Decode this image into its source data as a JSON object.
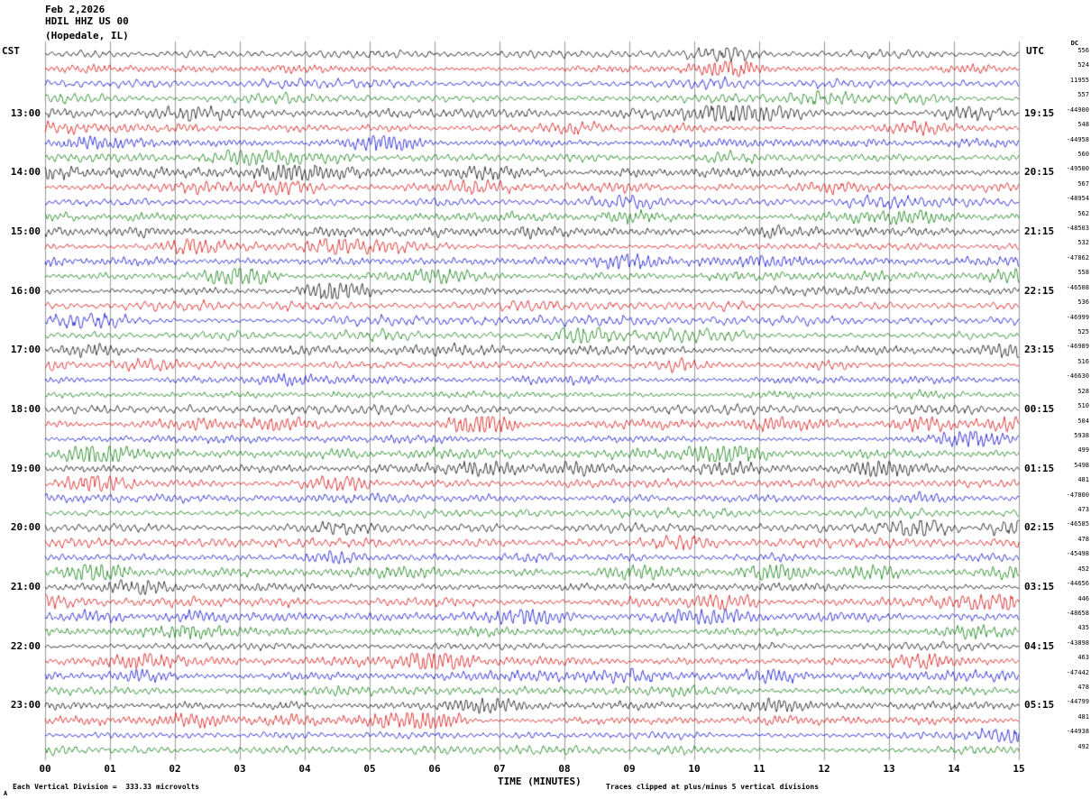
{
  "header": {
    "date": "Feb 2,2026",
    "station": "HDIL HHZ US 00",
    "location": "(Hopedale, IL)"
  },
  "corner_labels": {
    "left": "CST",
    "right": "UTC",
    "dc": "DC"
  },
  "x_axis": {
    "title": "TIME (MINUTES)",
    "ticks": [
      "00",
      "01",
      "02",
      "03",
      "04",
      "05",
      "06",
      "07",
      "08",
      "09",
      "10",
      "11",
      "12",
      "13",
      "14",
      "15"
    ]
  },
  "footer": {
    "scale_note": "Each Vertical Division =  333.33 microvolts",
    "clip_note": "Traces clipped at plus/minus 5 vertical divisions",
    "corner_mark": "A"
  },
  "chart_data": {
    "type": "line",
    "description": "Helicorder seismogram: 48 traces, 15 minutes of continuous waveform per row, colors cycling black/red/blue/green; right column lists per-trace DC offset values.",
    "minutes_per_line": 15,
    "x_range": [
      0,
      15
    ],
    "microvolts_per_division": 333.33,
    "clip_divisions": 5,
    "grid": "vertical lines each minute",
    "legend_position": "none",
    "trace_colors": {
      "black": "#000000",
      "red": "#d40000",
      "blue": "#0000cc",
      "green": "#007700"
    },
    "color_cycle": [
      "black",
      "red",
      "blue",
      "green"
    ],
    "rows": [
      {
        "cst": "",
        "utc": "",
        "dc": 556
      },
      {
        "cst": "",
        "utc": "",
        "dc": 524
      },
      {
        "cst": "",
        "utc": "",
        "dc": 11955
      },
      {
        "cst": "",
        "utc": "",
        "dc": 557
      },
      {
        "cst": "13:00",
        "utc": "19:15",
        "dc": -44900
      },
      {
        "cst": "",
        "utc": "",
        "dc": 548
      },
      {
        "cst": "",
        "utc": "",
        "dc": -44958
      },
      {
        "cst": "",
        "utc": "",
        "dc": 560
      },
      {
        "cst": "14:00",
        "utc": "20:15",
        "dc": -49500
      },
      {
        "cst": "",
        "utc": "",
        "dc": 567
      },
      {
        "cst": "",
        "utc": "",
        "dc": -48954
      },
      {
        "cst": "",
        "utc": "",
        "dc": 562
      },
      {
        "cst": "15:00",
        "utc": "21:15",
        "dc": -48503
      },
      {
        "cst": "",
        "utc": "",
        "dc": 532
      },
      {
        "cst": "",
        "utc": "",
        "dc": -47862
      },
      {
        "cst": "",
        "utc": "",
        "dc": 558
      },
      {
        "cst": "16:00",
        "utc": "22:15",
        "dc": -46508
      },
      {
        "cst": "",
        "utc": "",
        "dc": 536
      },
      {
        "cst": "",
        "utc": "",
        "dc": -46999
      },
      {
        "cst": "",
        "utc": "",
        "dc": 525
      },
      {
        "cst": "17:00",
        "utc": "23:15",
        "dc": -46989
      },
      {
        "cst": "",
        "utc": "",
        "dc": 516
      },
      {
        "cst": "",
        "utc": "",
        "dc": -46630
      },
      {
        "cst": "",
        "utc": "",
        "dc": 528
      },
      {
        "cst": "18:00",
        "utc": "00:15",
        "dc": 510
      },
      {
        "cst": "",
        "utc": "",
        "dc": 504
      },
      {
        "cst": "",
        "utc": "",
        "dc": 5938
      },
      {
        "cst": "",
        "utc": "",
        "dc": 499
      },
      {
        "cst": "19:00",
        "utc": "01:15",
        "dc": 5498
      },
      {
        "cst": "",
        "utc": "",
        "dc": 481
      },
      {
        "cst": "",
        "utc": "",
        "dc": -47800
      },
      {
        "cst": "",
        "utc": "",
        "dc": 473
      },
      {
        "cst": "20:00",
        "utc": "02:15",
        "dc": -46585
      },
      {
        "cst": "",
        "utc": "",
        "dc": 478
      },
      {
        "cst": "",
        "utc": "",
        "dc": -45498
      },
      {
        "cst": "",
        "utc": "",
        "dc": 452
      },
      {
        "cst": "21:00",
        "utc": "03:15",
        "dc": -44656
      },
      {
        "cst": "",
        "utc": "",
        "dc": 446
      },
      {
        "cst": "",
        "utc": "",
        "dc": -48658
      },
      {
        "cst": "",
        "utc": "",
        "dc": 435
      },
      {
        "cst": "22:00",
        "utc": "04:15",
        "dc": -43898
      },
      {
        "cst": "",
        "utc": "",
        "dc": 463
      },
      {
        "cst": "",
        "utc": "",
        "dc": -47442
      },
      {
        "cst": "",
        "utc": "",
        "dc": 478
      },
      {
        "cst": "23:00",
        "utc": "05:15",
        "dc": -44799
      },
      {
        "cst": "",
        "utc": "",
        "dc": 481
      },
      {
        "cst": "",
        "utc": "",
        "dc": -44938
      },
      {
        "cst": "",
        "utc": "",
        "dc": 492
      }
    ]
  }
}
